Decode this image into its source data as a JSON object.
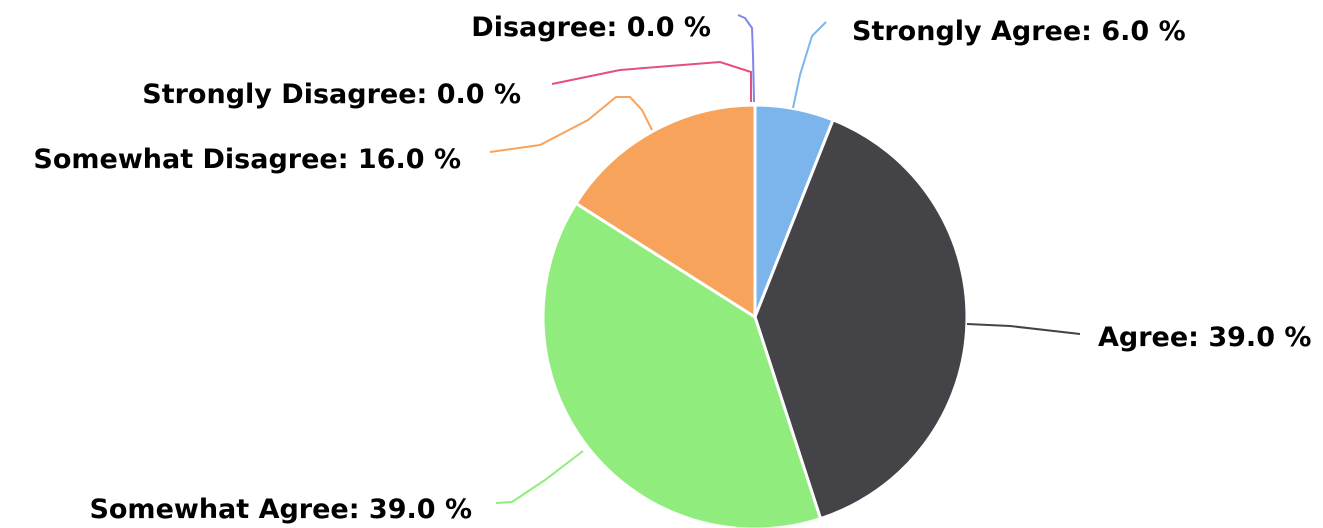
{
  "chart_data": {
    "type": "pie",
    "slices": [
      {
        "label": "Strongly Agree",
        "value": 6.0,
        "display": "6.0 %",
        "color": "#7cb5ec"
      },
      {
        "label": "Agree",
        "value": 39.0,
        "display": "39.0 %",
        "color": "#434348"
      },
      {
        "label": "Somewhat Agree",
        "value": 39.0,
        "display": "39.0 %",
        "color": "#90ed7d"
      },
      {
        "label": "Somewhat Disagree",
        "value": 16.0,
        "display": "16.0 %",
        "color": "#f7a35c"
      },
      {
        "label": "Strongly Disagree",
        "value": 0.0,
        "display": "0.0 %",
        "color": "#e4507a"
      },
      {
        "label": "Disagree",
        "value": 0.0,
        "display": "0.0 %",
        "color": "#8085e9"
      }
    ],
    "legend": "none",
    "data_labels": "outside-with-connectors"
  }
}
